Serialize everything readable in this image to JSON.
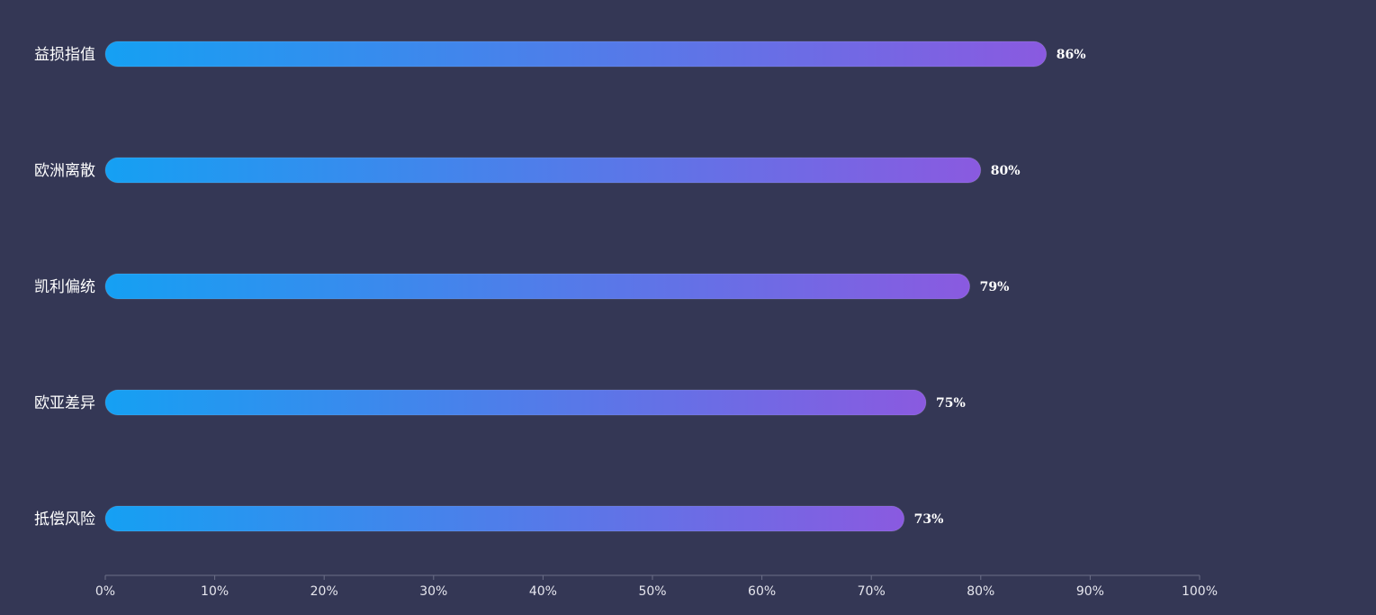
{
  "chart_data": {
    "type": "bar",
    "orientation": "horizontal",
    "categories": [
      "益损指值",
      "欧洲离散",
      "凯利偏统",
      "欧亚差异",
      "抵偿风险"
    ],
    "values": [
      86,
      80,
      79,
      75,
      73
    ],
    "value_suffix": "%",
    "xlim": [
      0,
      100
    ],
    "x_ticks": [
      0,
      10,
      20,
      30,
      40,
      50,
      60,
      70,
      80,
      90,
      100
    ],
    "x_tick_labels": [
      "0%",
      "10%",
      "20%",
      "30%",
      "40%",
      "50%",
      "60%",
      "70%",
      "80%",
      "90%",
      "100%"
    ],
    "title": "",
    "xlabel": "",
    "ylabel": "",
    "grid": false,
    "legend": "none"
  },
  "colors": {
    "background": "#343755",
    "bar_gradient_start": "#15a0f3",
    "bar_gradient_end": "#8a5ae0",
    "axis_line": "#6c6f88",
    "text": "#ffffff"
  }
}
